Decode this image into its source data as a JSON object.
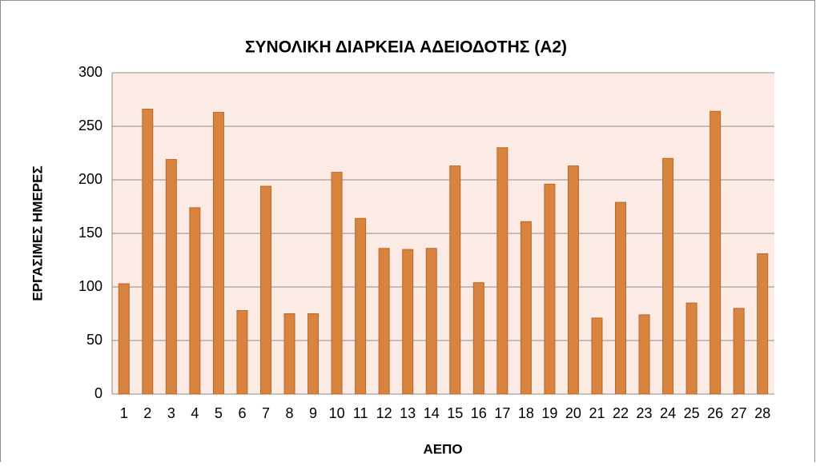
{
  "chart_data": {
    "type": "bar",
    "title": "ΣΥΝΟΛΙΚΗ ΔΙΑΡΚΕΙΑ ΑΔΕΙΟΔΟΤΗΣ (Α2)",
    "x_label": "ΑΕΠΟ",
    "y_label": "ΕΡΓΑΣΙΜΕΣ ΗΜΕΡΕΣ",
    "categories": [
      "1",
      "2",
      "3",
      "4",
      "5",
      "6",
      "7",
      "8",
      "9",
      "10",
      "11",
      "12",
      "13",
      "14",
      "15",
      "16",
      "17",
      "18",
      "19",
      "20",
      "21",
      "22",
      "23",
      "24",
      "25",
      "26",
      "27",
      "28"
    ],
    "values": [
      103,
      266,
      219,
      174,
      263,
      78,
      194,
      75,
      75,
      207,
      164,
      136,
      135,
      136,
      213,
      104,
      230,
      161,
      196,
      213,
      71,
      179,
      74,
      220,
      85,
      264,
      80,
      131
    ],
    "color": "#d9843e",
    "ylim": [
      0,
      300
    ],
    "yticks": [
      0,
      50,
      100,
      150,
      200,
      250,
      300
    ],
    "grid": true
  }
}
